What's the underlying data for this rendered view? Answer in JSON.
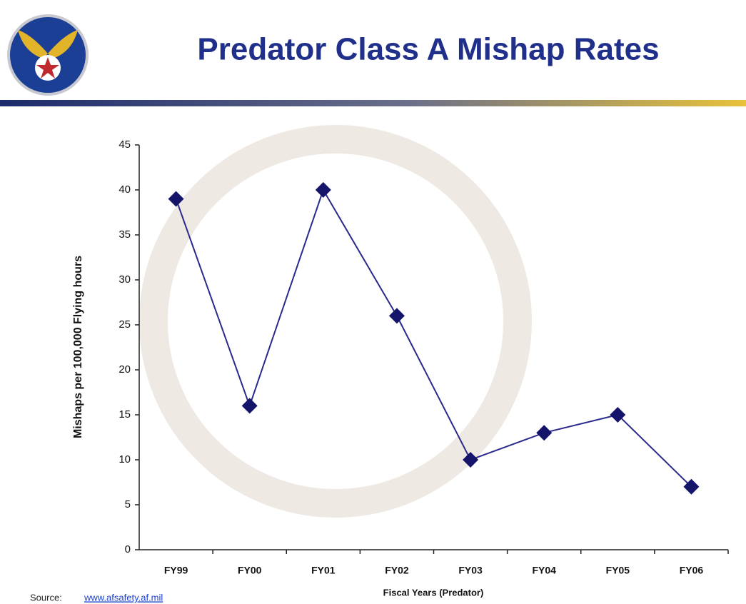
{
  "chart_data": {
    "type": "line",
    "title": "Predator Class A Mishap Rates",
    "y_label": "Mishaps per 100,000 Flying hours",
    "x_label": "Fiscal Years (Predator)",
    "categories": [
      "FY99",
      "FY00",
      "FY01",
      "FY02",
      "FY03",
      "FY04",
      "FY05",
      "FY06"
    ],
    "values": [
      39,
      16,
      40,
      26,
      10,
      13,
      15,
      7
    ],
    "color": "#2a2a8c",
    "marker_color": "#14146a",
    "ylim": [
      0,
      45
    ],
    "yticks": [
      0,
      5,
      10,
      15,
      20,
      25,
      30,
      35,
      40,
      45
    ],
    "grid": false
  },
  "source": {
    "prefix": "Source:",
    "link": "www.afsafety.af.mil"
  }
}
